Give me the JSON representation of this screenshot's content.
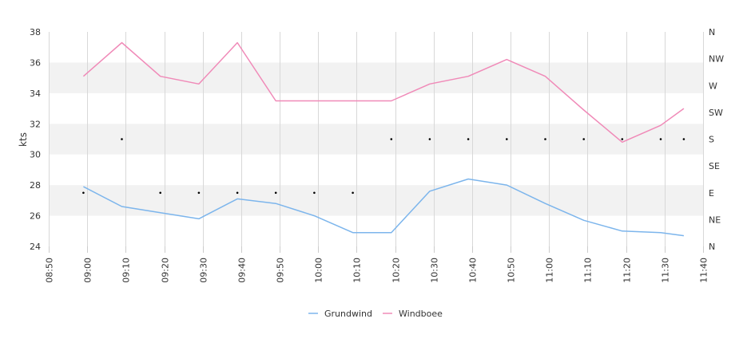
{
  "chart_data": {
    "type": "line",
    "ylabel": "kts",
    "ylim": [
      24,
      38
    ],
    "yticks": [
      24,
      26,
      28,
      30,
      32,
      34,
      36,
      38
    ],
    "x_ticks": [
      "08:50",
      "09:00",
      "09:10",
      "09:20",
      "09:30",
      "09:40",
      "09:50",
      "10:00",
      "10:10",
      "10:20",
      "10:30",
      "10:40",
      "10:50",
      "11:00",
      "11:10",
      "11:20",
      "11:30",
      "11:40"
    ],
    "xlim": [
      "08:50",
      "11:40"
    ],
    "y2_ticks": [
      "N",
      "NE",
      "E",
      "SE",
      "S",
      "SW",
      "W",
      "NW",
      "N"
    ],
    "y2_range": [
      0,
      360
    ],
    "grid": true,
    "band_color": "#f2f2f2",
    "legend_position": "bottom",
    "x": [
      "08:59",
      "09:09",
      "09:19",
      "09:29",
      "09:39",
      "09:49",
      "09:59",
      "10:09",
      "10:19",
      "10:29",
      "10:39",
      "10:49",
      "10:59",
      "11:09",
      "11:19",
      "11:29",
      "11:35"
    ],
    "series": [
      {
        "name": "Grundwind",
        "color": "#7cb5ec",
        "values": [
          27.9,
          26.6,
          26.2,
          25.8,
          27.1,
          26.8,
          26.0,
          24.9,
          24.9,
          27.6,
          28.4,
          28.0,
          26.8,
          25.7,
          25.0,
          24.9,
          24.7
        ]
      },
      {
        "name": "Windboee",
        "color": "#f08ab8",
        "values": [
          35.1,
          37.3,
          35.1,
          34.6,
          37.3,
          33.5,
          33.5,
          33.5,
          33.5,
          34.6,
          35.1,
          36.2,
          35.1,
          32.9,
          30.8,
          31.9,
          33.0
        ]
      }
    ],
    "direction": {
      "color": "#000000",
      "x": [
        "08:59",
        "09:09",
        "09:19",
        "09:29",
        "09:39",
        "09:49",
        "09:59",
        "10:09",
        "10:19",
        "10:29",
        "10:39",
        "10:49",
        "10:59",
        "11:09",
        "11:19",
        "11:29",
        "11:35"
      ],
      "values": [
        90,
        180,
        90,
        90,
        90,
        90,
        90,
        90,
        180,
        180,
        180,
        180,
        180,
        180,
        180,
        180,
        180
      ]
    }
  }
}
